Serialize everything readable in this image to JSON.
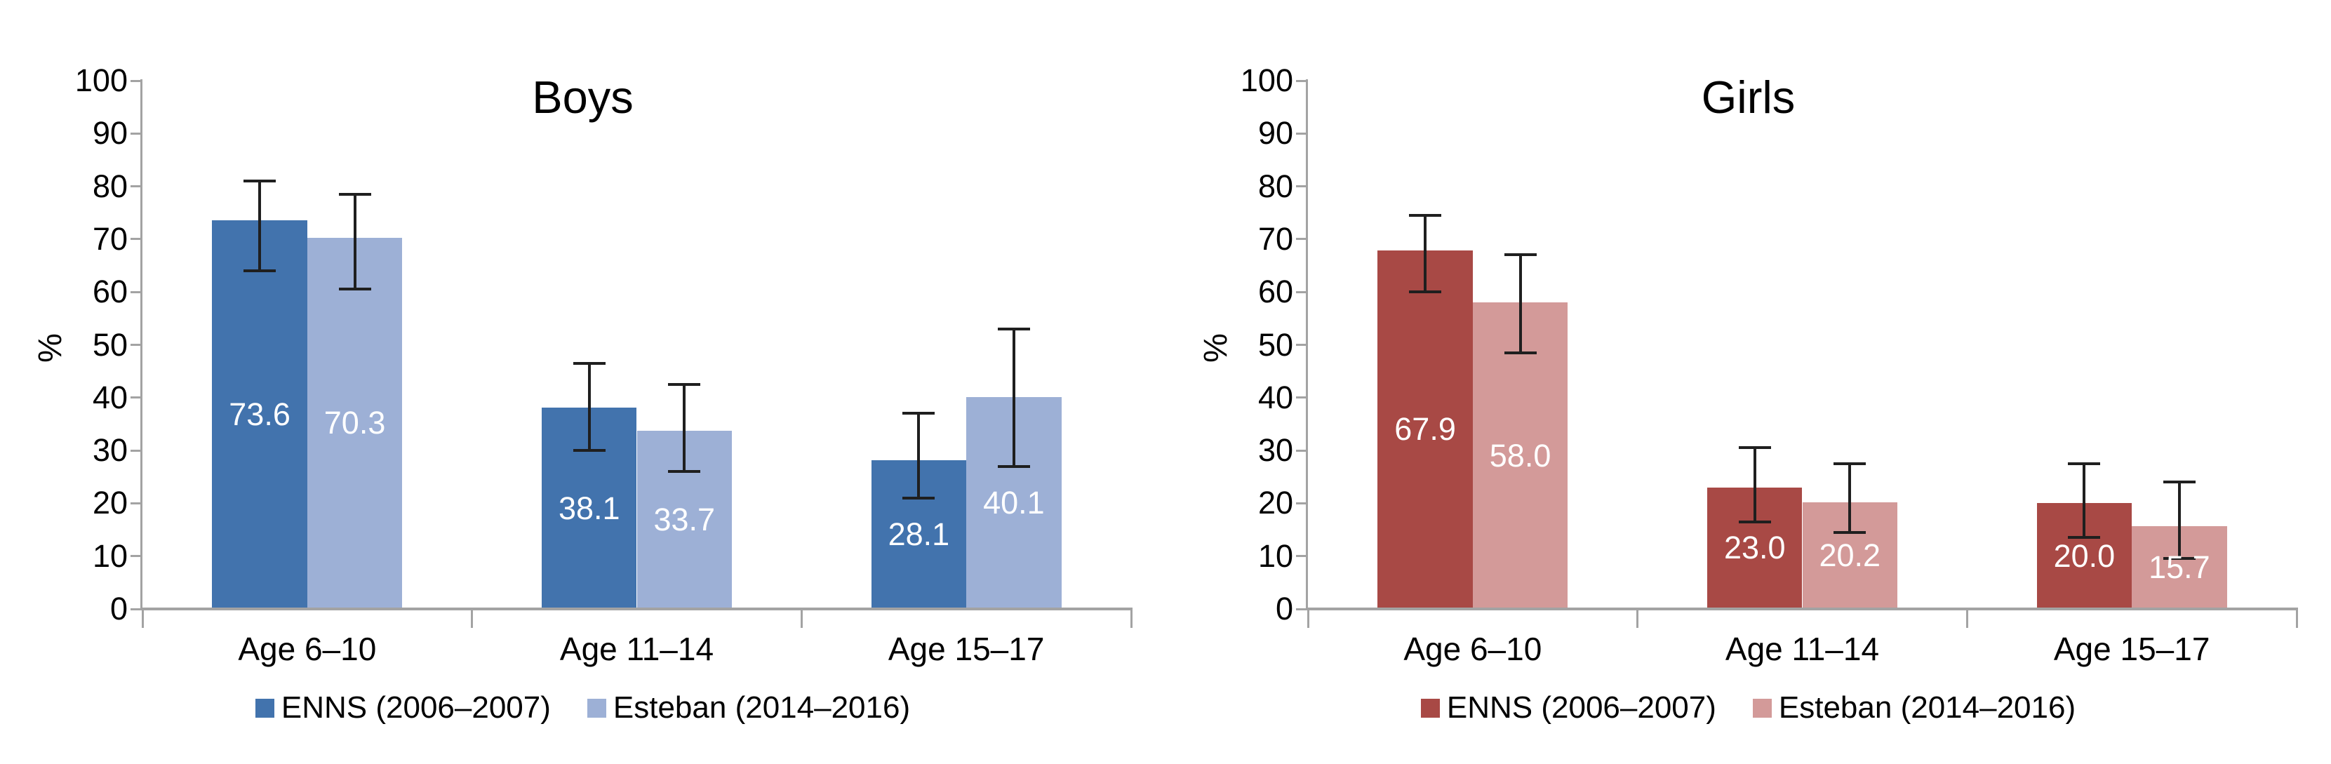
{
  "page": {
    "background": "#ffffff"
  },
  "chart_data": [
    {
      "type": "bar",
      "title": "Boys",
      "ylabel": "%",
      "ylim": [
        0,
        100
      ],
      "yticks": [
        0,
        10,
        20,
        30,
        40,
        50,
        60,
        70,
        80,
        90,
        100
      ],
      "grid": false,
      "legend_position": "bottom",
      "categories": [
        "Age 6–10",
        "Age 11–14",
        "Age 15–17"
      ],
      "series": [
        {
          "name": "ENNS (2006–2007)",
          "color": "#4273ad",
          "values": [
            73.6,
            38.1,
            28.1
          ],
          "error_low": [
            64.0,
            30.0,
            21.0
          ],
          "error_high": [
            81.0,
            46.5,
            37.0
          ]
        },
        {
          "name": "Esteban (2014–2016)",
          "color": "#9db0d6",
          "values": [
            70.3,
            33.7,
            40.1
          ],
          "error_low": [
            60.5,
            26.0,
            27.0
          ],
          "error_high": [
            78.5,
            42.5,
            53.0
          ]
        }
      ]
    },
    {
      "type": "bar",
      "title": "Girls",
      "ylabel": "%",
      "ylim": [
        0,
        100
      ],
      "yticks": [
        0,
        10,
        20,
        30,
        40,
        50,
        60,
        70,
        80,
        90,
        100
      ],
      "grid": false,
      "legend_position": "bottom",
      "categories": [
        "Age 6–10",
        "Age 11–14",
        "Age 15–17"
      ],
      "series": [
        {
          "name": "ENNS (2006–2007)",
          "color": "#a84945",
          "values": [
            67.9,
            23.0,
            20.0
          ],
          "error_low": [
            60.0,
            16.5,
            13.5
          ],
          "error_high": [
            74.5,
            30.5,
            27.5
          ]
        },
        {
          "name": "Esteban (2014–2016)",
          "color": "#d39a99",
          "values": [
            58.0,
            20.2,
            15.7
          ],
          "error_low": [
            48.5,
            14.5,
            9.5
          ],
          "error_high": [
            67.0,
            27.5,
            24.0
          ]
        }
      ]
    }
  ],
  "style": {
    "axis_color": "#a3a3a3",
    "error_bar_color": "#1f1f1f",
    "value_label_color": "#ffffff"
  }
}
